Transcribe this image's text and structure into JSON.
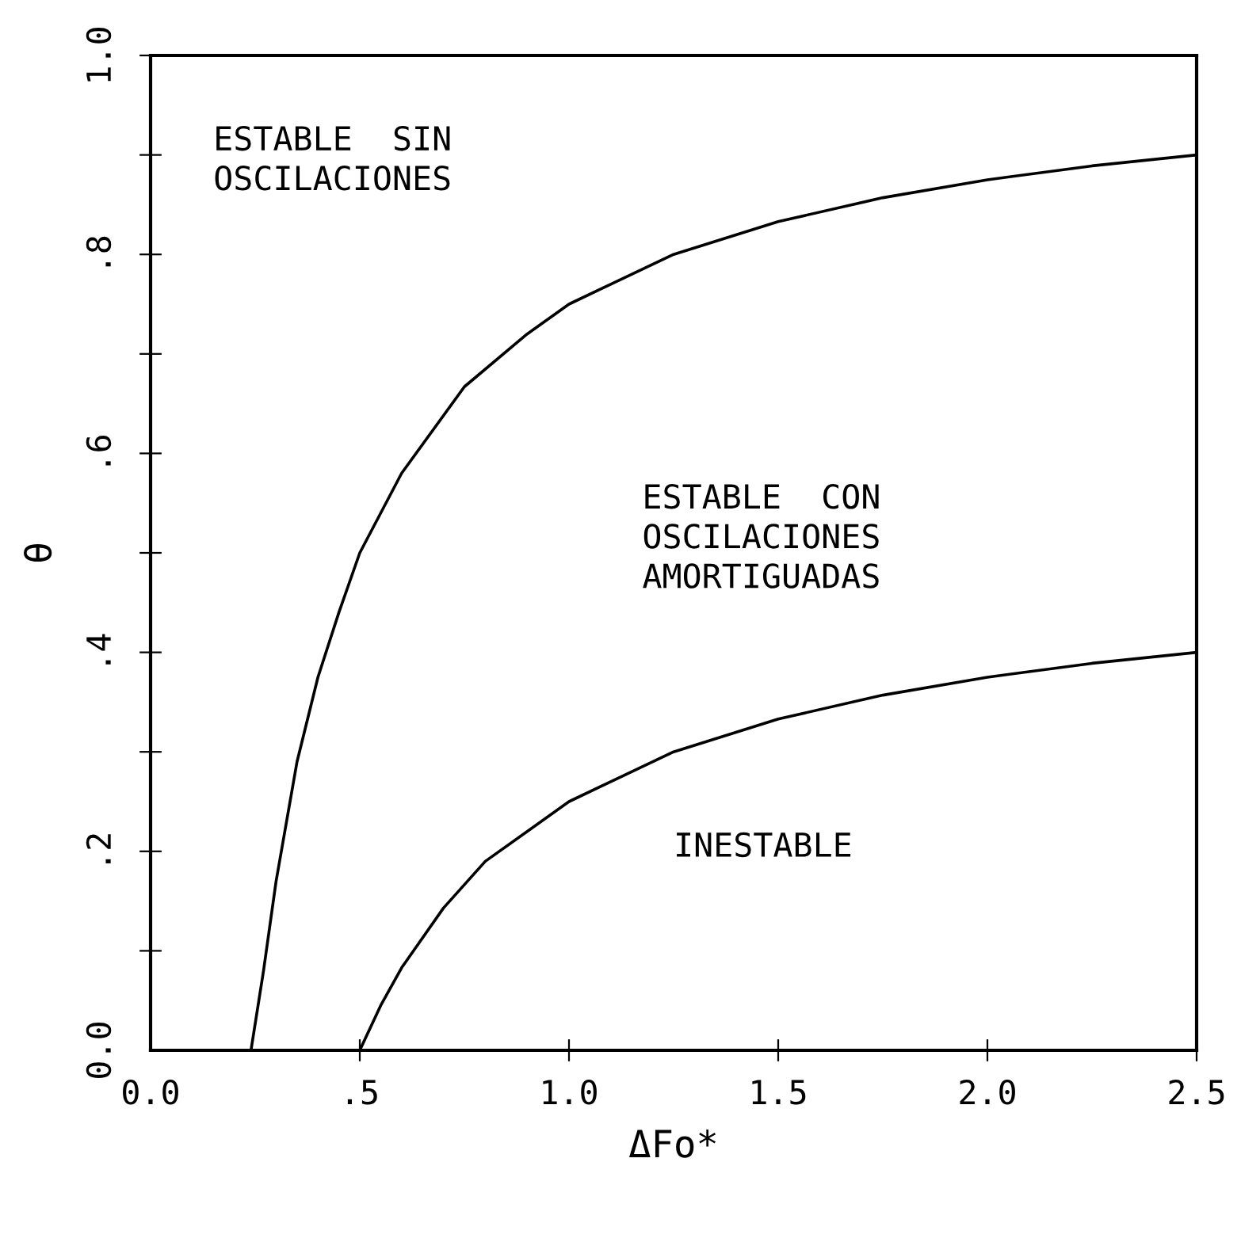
{
  "chart_data": {
    "type": "line",
    "xlabel": "ΔFo*",
    "ylabel": "θ",
    "series": [
      {
        "color": "#000000",
        "x": [
          0.24,
          0.27,
          0.3,
          0.35,
          0.4,
          0.45,
          0.5,
          0.6,
          0.75,
          0.9,
          1.0,
          1.25,
          1.5,
          1.75,
          2.0,
          2.25,
          2.5
        ],
        "values": [
          0.0,
          0.08,
          0.17,
          0.29,
          0.375,
          0.44,
          0.5,
          0.58,
          0.667,
          0.72,
          0.75,
          0.8,
          0.833,
          0.857,
          0.875,
          0.889,
          0.9
        ]
      },
      {
        "color": "#000000",
        "x": [
          0.5,
          0.55,
          0.6,
          0.7,
          0.8,
          0.9,
          1.0,
          1.25,
          1.5,
          1.75,
          2.0,
          2.25,
          2.5
        ],
        "values": [
          0.0,
          0.045,
          0.083,
          0.143,
          0.19,
          0.22,
          0.25,
          0.3,
          0.333,
          0.357,
          0.375,
          0.389,
          0.4
        ]
      }
    ],
    "annotations": [
      "ESTABLE  SIN\nOSCILACIONES",
      "ESTABLE  CON\nOSCILACIONES\nAMORTIGUADAS",
      "INESTABLE"
    ],
    "xlim": [
      0,
      2.5
    ],
    "xticks": [
      {
        "value": 0,
        "label": "0.0"
      },
      {
        "value": 0.5,
        "label": ".5"
      },
      {
        "value": 1.0,
        "label": "1.0"
      },
      {
        "value": 1.5,
        "label": "1.5"
      },
      {
        "value": 2.0,
        "label": "2.0"
      },
      {
        "value": 2.5,
        "label": "2.5"
      }
    ],
    "ylim": [
      0,
      1
    ],
    "yticks": [
      {
        "value": 0,
        "label": "0.0"
      },
      {
        "value": 0.1,
        "label": null
      },
      {
        "value": 0.2,
        "label": ".2"
      },
      {
        "value": 0.3,
        "label": null
      },
      {
        "value": 0.4,
        "label": ".4"
      },
      {
        "value": 0.5,
        "label": null
      },
      {
        "value": 0.6,
        "label": ".6"
      },
      {
        "value": 0.7,
        "label": null
      },
      {
        "value": 0.8,
        "label": ".8"
      },
      {
        "value": 0.9,
        "label": null
      },
      {
        "value": 1.0,
        "label": "1.0"
      }
    ],
    "grid": false,
    "legend": false,
    "marker": "none",
    "line_style": "solid"
  }
}
